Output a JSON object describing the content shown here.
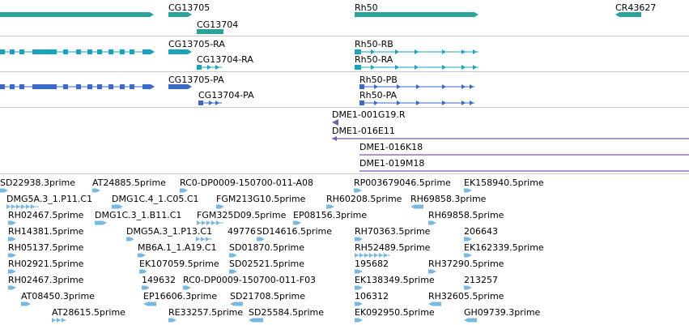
{
  "colors": {
    "gene": "#2aa39a",
    "transcript_flybase": "#1aa3c0",
    "transcript_refseq": "#3a6ac8",
    "clone": "#7b5aa6",
    "est": "#77b9e0",
    "separator": "#c8c8c8"
  },
  "tracks": {
    "genes": {
      "labels": [
        "CG13705",
        "CG13704",
        "Rh50",
        "CR43627"
      ]
    },
    "transcripts_a": {
      "labels": [
        "CG13705-RA",
        "CG13704-RA",
        "Rh50-RB",
        "Rh50-RA"
      ]
    },
    "transcripts_b": {
      "labels": [
        "CG13705-PA",
        "CG13704-PA",
        "Rh50-PB",
        "Rh50-PA"
      ]
    },
    "clones": {
      "labels": [
        "DME1-001G19.R",
        "DME1-016E11",
        "DME1-016K18",
        "DME1-019M18"
      ]
    },
    "ests": {
      "labels": [
        "SD22938.3prime",
        "AT24885.5prime",
        "RC0-DP0009-150700-011-A08",
        "RP003679046.5prime",
        "EK158940.5prime",
        "DMG5A.3_1.P11.C1",
        "DMG1C.4_1.C05.C1",
        "FGM213G10.5prime",
        "RH60208.5prime",
        "RH69858.3prime",
        "RH02467.5prime",
        "DMG1C.3_1.B11.C1",
        "FGM325D09.5prime",
        "EP08156.3prime",
        "RH69858.5prime",
        "RH14381.5prime",
        "DMG5A.3_1.P13.C1",
        "49776",
        "SD14616.5prime",
        "RH70363.5prime",
        "206643",
        "RH05137.5prime",
        "MB6A.1_1.A19.C1",
        "SD01870.5prime",
        "RH52489.5prime",
        "EK162339.5prime",
        "RH02921.5prime",
        "EK107059.5prime",
        "SD02521.5prime",
        "195682",
        "RH37290.5prime",
        "RH02467.3prime",
        "149632",
        "RC0-DP0009-150700-011-F03",
        "EK138349.5prime",
        "213257",
        "AT08450.3prime",
        "EP16606.3prime",
        "SD21708.5prime",
        "106312",
        "RH32605.5prime",
        "AT28615.5prime",
        "RE33257.5prime",
        "SD25584.5prime",
        "EK092950.5prime",
        "GH09739.3prime"
      ]
    }
  }
}
